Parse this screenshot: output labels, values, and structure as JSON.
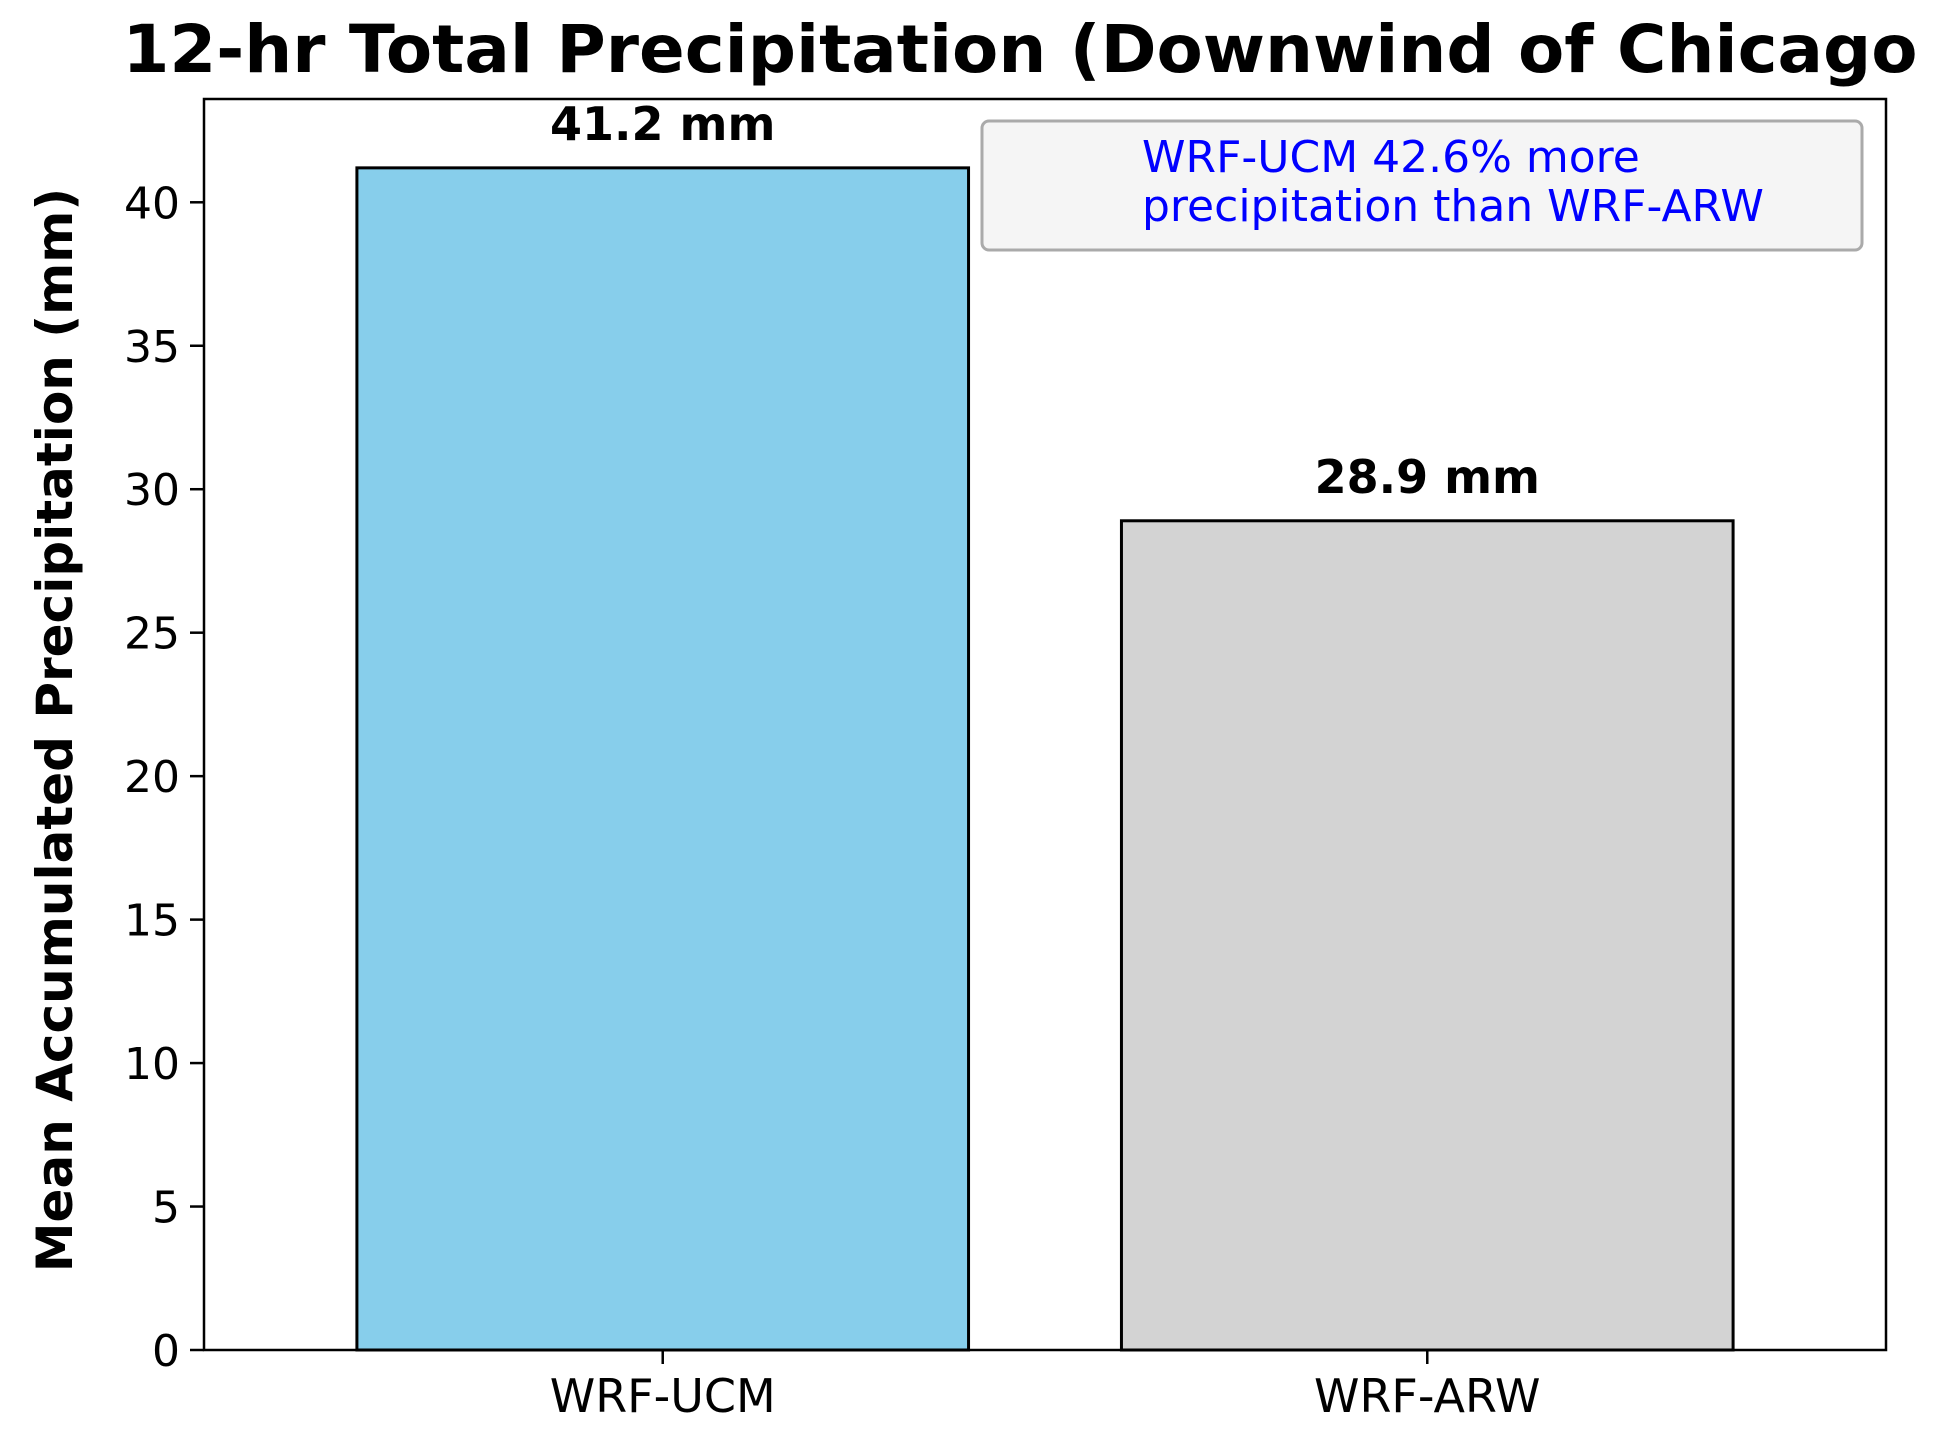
{
  "chart_data": {
    "type": "bar",
    "title": "12-hr Total Precipitation (Downwind of Chicago",
    "xlabel": "",
    "ylabel": "Mean Accumulated Precipitation (mm)",
    "categories": [
      "WRF-UCM",
      "WRF-ARW"
    ],
    "values": [
      41.2,
      28.9
    ],
    "value_labels": [
      "41.2 mm",
      "28.9 mm"
    ],
    "colors": [
      "#87ceeb",
      "#d3d3d3"
    ],
    "edge_color": "#000000",
    "ylim": [
      0,
      43.6
    ],
    "yticks": [
      0,
      5,
      10,
      15,
      20,
      25,
      30,
      35,
      40
    ],
    "grid": false,
    "annotation": {
      "lines": [
        "WRF-UCM 42.6% more",
        "precipitation than WRF-ARW"
      ],
      "color": "#0000ff",
      "placement": "top-right"
    }
  }
}
